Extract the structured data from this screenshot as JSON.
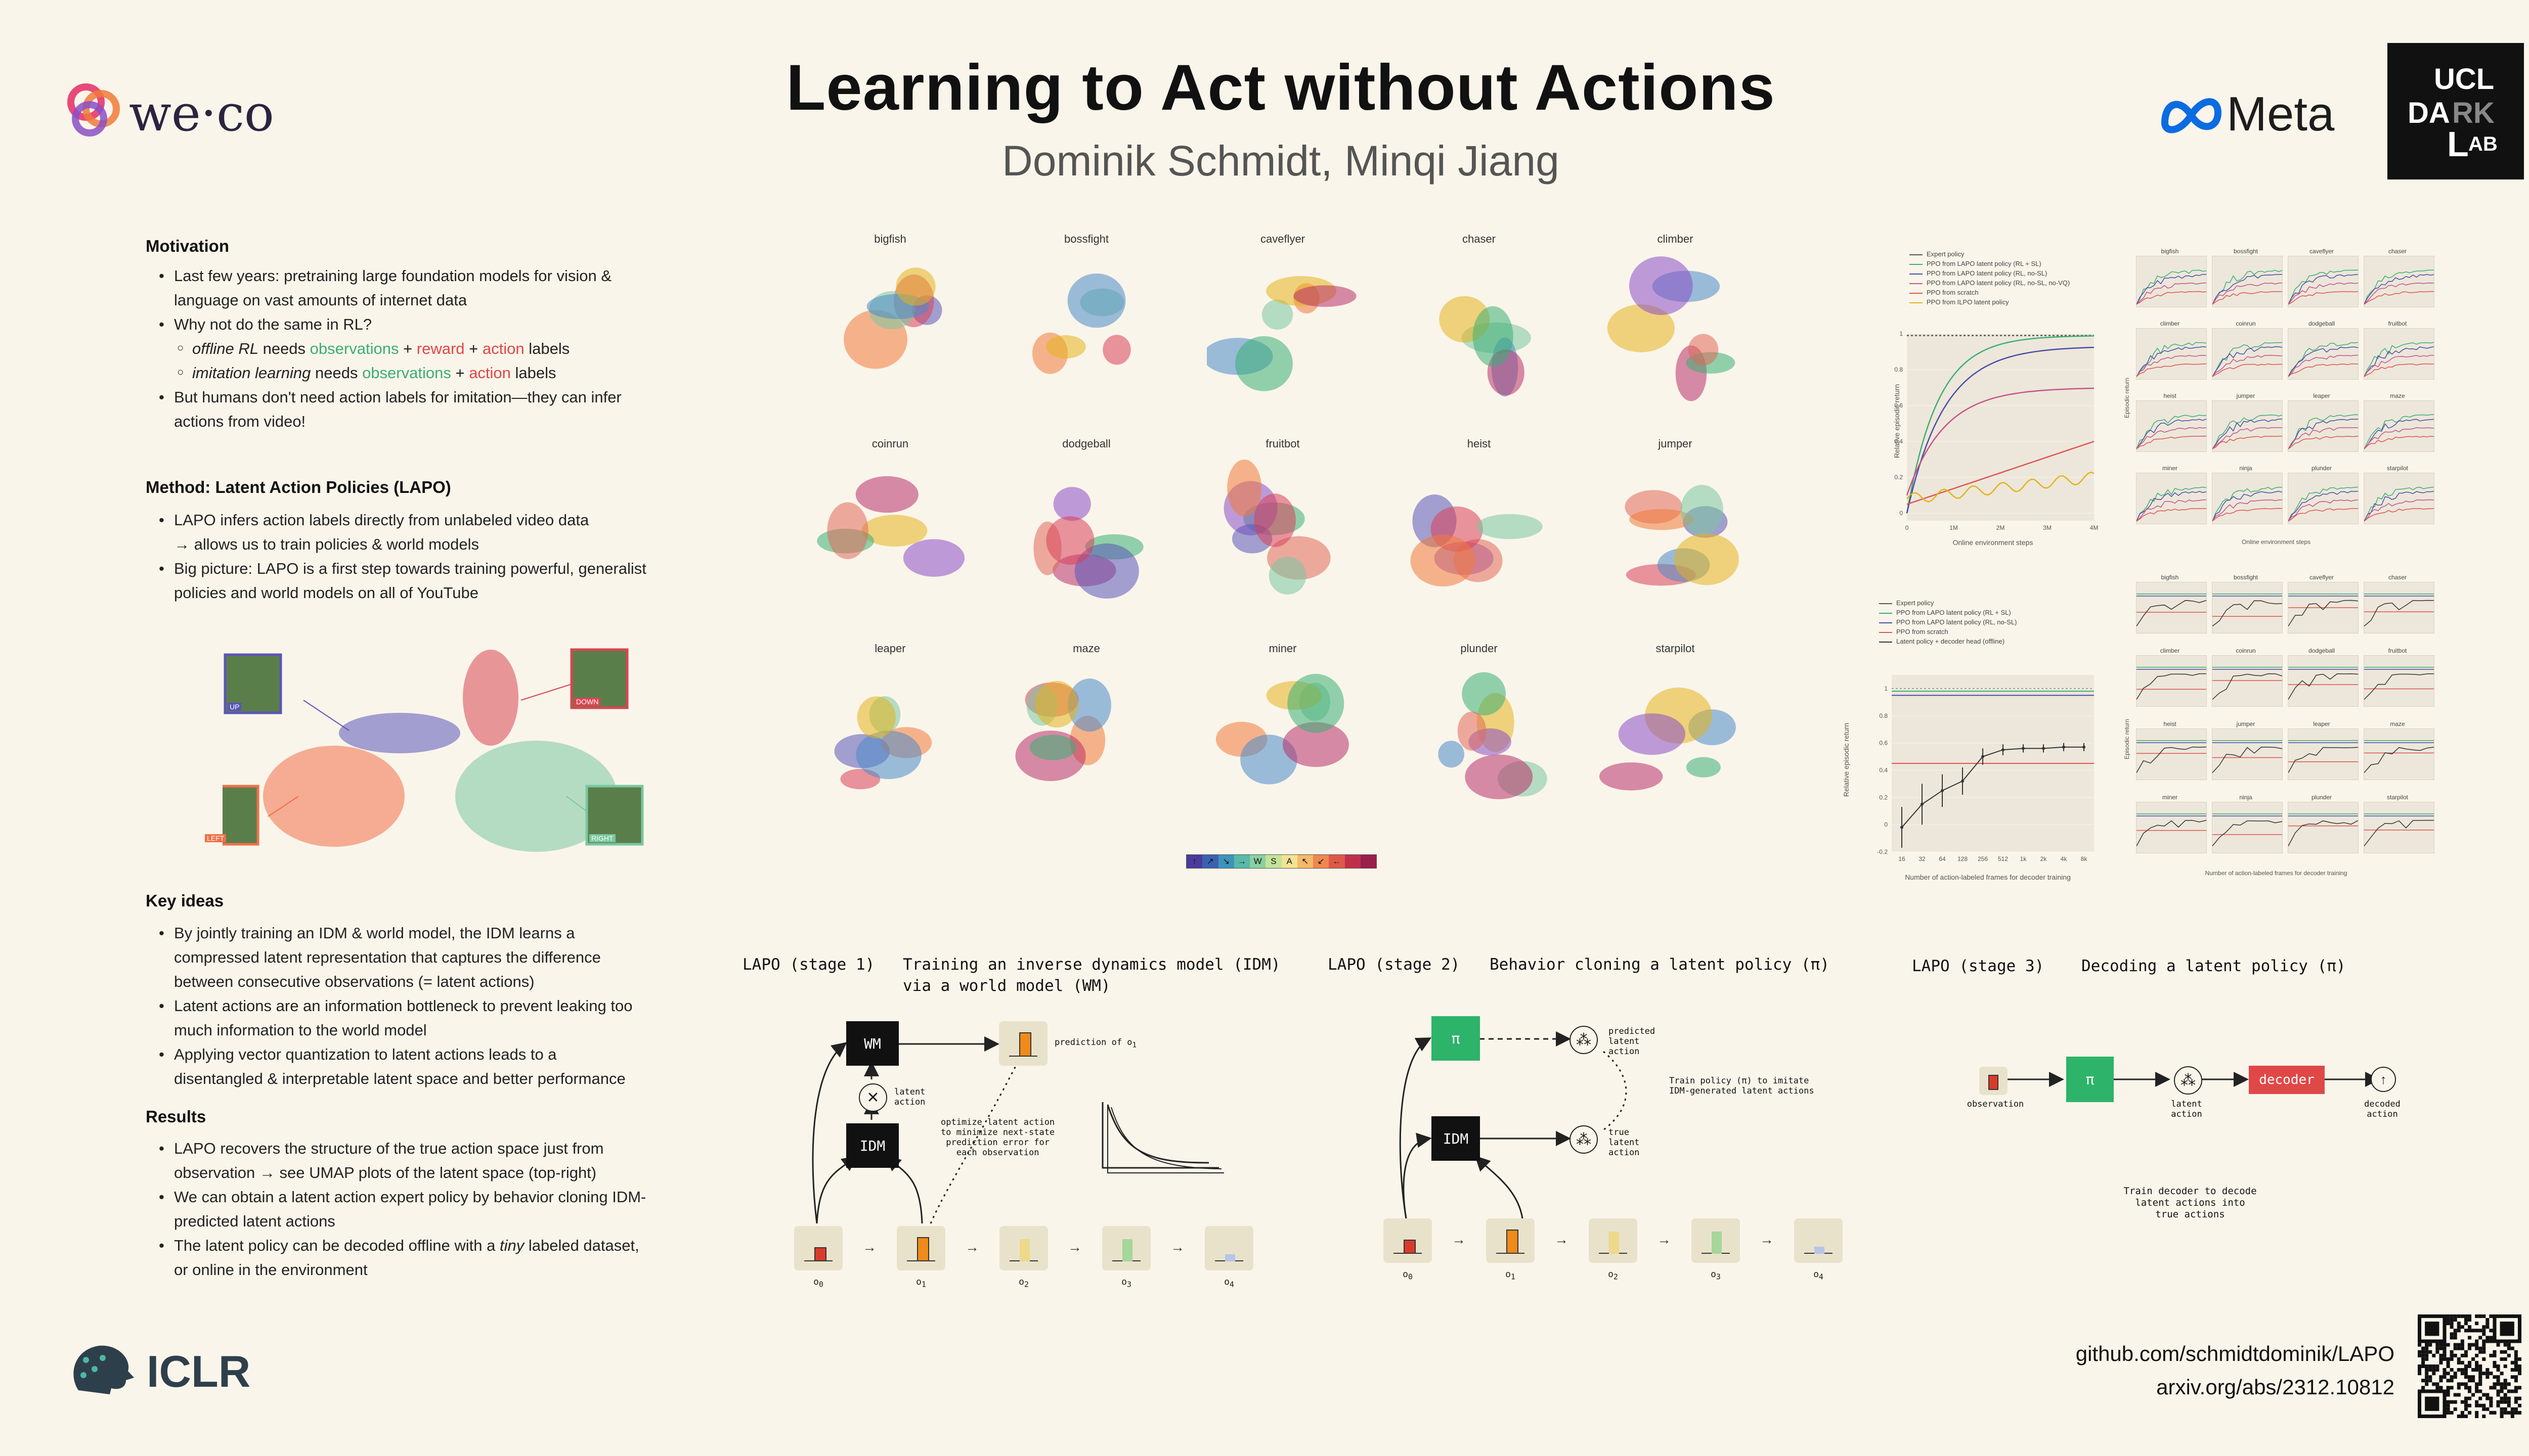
{
  "header": {
    "title": "Learning to Act without Actions",
    "authors": "Dominik Schmidt, Minqi Jiang"
  },
  "logos": {
    "weco": "we·co",
    "meta": "Meta",
    "ucl_line1": "UCL",
    "ucl_line2a": "DA",
    "ucl_line2b": "RK",
    "ucl_line3": "AB",
    "ucl_L": "L",
    "iclr": "ICLR"
  },
  "motivation": {
    "heading": "Motivation",
    "b1a": "Last few years: pretraining large foundation models for vision &",
    "b1b": "language on vast amounts of internet data",
    "b2": "Why not do the same in RL?",
    "s1_pre": "offline RL",
    "s1_needs": " needs ",
    "s1_obs": "observations",
    "s1_plus1": " + ",
    "s1_rew": "reward",
    "s1_plus2": " + ",
    "s1_act": "action",
    "s1_labels": " labels",
    "s2_pre": "imitation learning",
    "s2_needs": " needs ",
    "s2_obs": "observations",
    "s2_plus": " + ",
    "s2_act": "action",
    "s2_labels": " labels",
    "b3a": "But humans don't need action labels for imitation—they can infer",
    "b3b": "actions from video!"
  },
  "method": {
    "heading": "Method: Latent Action Policies (LAPO)",
    "b1": "LAPO infers action labels directly from unlabeled video data",
    "b1b": "→ allows us to train policies & world models",
    "b2a": "Big picture: LAPO is a first step towards training powerful, generalist",
    "b2b": "policies and world models on all of YouTube"
  },
  "embedding_fig": {
    "labels": [
      "UP",
      "DOWN",
      "LEFT",
      "RIGHT"
    ]
  },
  "key_ideas": {
    "heading": "Key ideas",
    "b1a": "By jointly training an IDM & world model, the IDM learns a",
    "b1b": "compressed latent representation that captures the difference",
    "b1c": "between consecutive observations (= latent actions)",
    "b2a": "Latent actions are an information bottleneck to prevent leaking too",
    "b2b": "much information to the world model",
    "b3a": "Applying vector quantization to latent actions leads to a",
    "b3b": "disentangled & interpretable latent space and better performance"
  },
  "results": {
    "heading": "Results",
    "b1a": "LAPO recovers the structure of the true action space just from",
    "b1b": "observation → see UMAP plots of the latent space (top-right)",
    "b2a": "We can obtain a latent action expert policy by behavior cloning IDM-",
    "b2b": "predicted latent actions",
    "b3a_pre": "The latent policy can be decoded offline with a ",
    "b3a_em": "tiny",
    "b3a_post": " labeled dataset,",
    "b3b": "or online in the environment"
  },
  "umap": {
    "games": [
      "bigfish",
      "bossfight",
      "caveflyer",
      "chaser",
      "climber",
      "coinrun",
      "dodgeball",
      "fruitbot",
      "heist",
      "jumper",
      "leaper",
      "maze",
      "miner",
      "plunder",
      "starpilot"
    ],
    "colorbar": [
      "↑",
      "↗",
      "↘",
      "→",
      "W",
      "S",
      "A",
      "↖",
      "↙",
      "←",
      "",
      ""
    ]
  },
  "chart_online": {
    "legend": [
      "Expert policy",
      "PPO from LAPO latent policy (RL + SL)",
      "PPO from LAPO latent policy (RL, no-SL)",
      "PPO from LAPO latent policy (RL, no-SL, no-VQ)",
      "PPO from scratch",
      "PPO from ILPO latent policy"
    ],
    "colors": [
      "#555555",
      "#3aae74",
      "#4a4aa8",
      "#c8508a",
      "#e05252",
      "#e3b21d"
    ],
    "ylabel": "Relative episodic return",
    "xlabel": "Online environment steps",
    "yticks": [
      "1",
      "0.8",
      "0.6",
      "0.4",
      "0.2",
      "0"
    ],
    "xticks": [
      "0",
      "1M",
      "2M",
      "3M",
      "4M"
    ]
  },
  "chart_online_grid": {
    "xlabel": "Online environment steps",
    "ylabel": "Episodic return"
  },
  "chart_offline": {
    "legend": [
      "Expert policy",
      "PPO from LAPO latent policy (RL + SL)",
      "PPO from LAPO latent policy (RL, no-SL)",
      "PPO from scratch",
      "Latent policy + decoder head (offline)"
    ],
    "ylabel": "Relative episodic return",
    "xlabel": "Number of action-labeled frames for decoder training",
    "yticks": [
      "1",
      "0.8",
      "0.6",
      "0.4",
      "0.2",
      "0",
      "-0.2"
    ],
    "xticks": [
      "16",
      "32",
      "64",
      "128",
      "256",
      "512",
      "1k",
      "2k",
      "4k",
      "8k"
    ]
  },
  "chart_offline_grid": {
    "xlabel": "Number of action-labeled frames for decoder training",
    "ylabel": "Episodic return"
  },
  "stage1": {
    "label": "LAPO (stage 1)",
    "title1": "Training an inverse dynamics model (IDM)",
    "title2": "via a world model (WM)",
    "wm": "WM",
    "idm": "IDM",
    "latent_action": "latent\naction",
    "prediction": "prediction of o",
    "prediction_sub": "1",
    "optimize": "optimize latent action\nto minimize next-state\nprediction error for\neach observation",
    "obs": [
      "o",
      "o",
      "o",
      "o",
      "o"
    ],
    "obs_sub": [
      "0",
      "1",
      "2",
      "3",
      "4"
    ]
  },
  "stage2": {
    "label": "LAPO (stage 2)",
    "title": "Behavior cloning a latent policy (π)",
    "pi": "π",
    "idm": "IDM",
    "predicted": "predicted\nlatent\naction",
    "true": "true\nlatent\naction",
    "train": "Train policy (π) to imitate\nIDM-generated latent actions",
    "obs": [
      "o",
      "o",
      "o",
      "o",
      "o"
    ],
    "obs_sub": [
      "0",
      "1",
      "2",
      "3",
      "4"
    ]
  },
  "stage3": {
    "label": "LAPO (stage 3)",
    "title": "Decoding a latent policy (π)",
    "observation": "observation",
    "pi": "π",
    "latent_action": "latent\naction",
    "decoder": "decoder",
    "decoded": "decoded\naction",
    "train": "Train decoder to decode\nlatent actions into\ntrue actions"
  },
  "links": {
    "github": "github.com/schmidtdominik/LAPO",
    "arxiv": "arxiv.org/abs/2312.10812"
  }
}
